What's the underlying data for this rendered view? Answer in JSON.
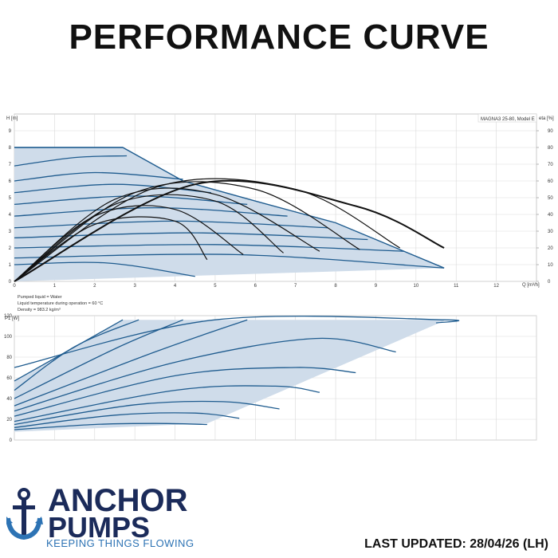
{
  "page": {
    "title": "PERFORMANCE CURVE",
    "last_updated": "LAST UPDATED: 28/04/26 (LH)"
  },
  "logo": {
    "line1": "ANCHOR",
    "line2": "PUMPS",
    "tagline": "KEEPING THINGS FLOWING"
  },
  "colors": {
    "curve_blue": "#1f5c8f",
    "shade": "#cfdcea",
    "eff_black": "#111111",
    "grid": "#d9d9d9",
    "logo_navy": "#1b2b5a",
    "logo_blue": "#2d73b4"
  },
  "chart_data": [
    {
      "type": "line",
      "legend_box": "MAGNA3 25-80, Model E",
      "ylabel": "H\n[m]",
      "y2label": "eta\n[%]",
      "xlabel": "Q [m³/h]",
      "xlim": [
        0,
        13
      ],
      "ylim": [
        0,
        10
      ],
      "y2lim": [
        0,
        100
      ],
      "x_ticks": [
        "0",
        "1",
        "2",
        "3",
        "4",
        "5",
        "6",
        "7",
        "8",
        "9",
        "10",
        "11",
        "12"
      ],
      "y_ticks": [
        "0",
        "1",
        "2",
        "3",
        "4",
        "5",
        "6",
        "7",
        "8",
        "9"
      ],
      "y2_ticks": [
        "0",
        "10",
        "20",
        "30",
        "40",
        "50",
        "60",
        "70",
        "80",
        "90"
      ],
      "grid": true,
      "notes": [
        "Pumped liquid = Water",
        "Liquid temperature during operation = 60 °C",
        "Density = 983.2 kg/m³"
      ],
      "envelope": {
        "x": [
          0,
          2.7,
          4.2,
          6.0,
          8.0,
          10.7,
          10.7,
          0
        ],
        "y": [
          8.0,
          8.0,
          6.0,
          4.8,
          3.5,
          0.8,
          0.8,
          0
        ]
      },
      "head_curves": [
        {
          "x": [
            0,
            2.7
          ],
          "y": [
            8.0,
            8.0
          ]
        },
        {
          "x": [
            0,
            1.5,
            2.8
          ],
          "y": [
            6.9,
            7.4,
            7.5
          ]
        },
        {
          "x": [
            0,
            2,
            4.2
          ],
          "y": [
            6.0,
            6.5,
            6.1
          ]
        },
        {
          "x": [
            0,
            2.5,
            4.9
          ],
          "y": [
            5.3,
            5.8,
            5.3
          ]
        },
        {
          "x": [
            0,
            3,
            5.8
          ],
          "y": [
            4.6,
            5.1,
            4.6
          ]
        },
        {
          "x": [
            0,
            3.5,
            6.8
          ],
          "y": [
            3.9,
            4.4,
            3.9
          ]
        },
        {
          "x": [
            0,
            4,
            7.8
          ],
          "y": [
            3.2,
            3.6,
            3.2
          ]
        },
        {
          "x": [
            0,
            4.5,
            8.8
          ],
          "y": [
            2.6,
            2.9,
            2.5
          ]
        },
        {
          "x": [
            0,
            5,
            9.7
          ],
          "y": [
            2.0,
            2.2,
            1.8
          ]
        },
        {
          "x": [
            0,
            5.5,
            10.7
          ],
          "y": [
            1.4,
            1.6,
            0.8
          ]
        },
        {
          "x": [
            0,
            2.3,
            4.5
          ],
          "y": [
            1.0,
            1.1,
            0.3
          ]
        }
      ],
      "eff_curves": [
        {
          "x": [
            0,
            2,
            4,
            4.8
          ],
          "y": [
            0,
            3.4,
            3.6,
            1.3
          ]
        },
        {
          "x": [
            0,
            2,
            4,
            5.7
          ],
          "y": [
            0,
            3.9,
            4.3,
            1.6
          ]
        },
        {
          "x": [
            0,
            2.5,
            5,
            6.7
          ],
          "y": [
            0,
            4.6,
            4.8,
            1.7
          ]
        },
        {
          "x": [
            0,
            2.5,
            5,
            7.6
          ],
          "y": [
            0,
            4.9,
            5.2,
            1.8
          ]
        },
        {
          "x": [
            0,
            3,
            6,
            8.6
          ],
          "y": [
            0,
            5.3,
            5.5,
            1.9
          ]
        },
        {
          "x": [
            0,
            3.5,
            7,
            9.6
          ],
          "y": [
            0,
            5.6,
            5.5,
            2.0
          ]
        },
        {
          "x": [
            0,
            4.5,
            8.5,
            10.7
          ],
          "y": [
            0,
            5.8,
            4.5,
            2.0
          ]
        }
      ]
    },
    {
      "type": "line",
      "ylabel": "P1\n[W]",
      "ylim": [
        0,
        120
      ],
      "xlim": [
        0,
        13
      ],
      "y_ticks": [
        "0",
        "20",
        "40",
        "60",
        "80",
        "100",
        "120"
      ],
      "grid": true,
      "envelope": {
        "x": [
          0,
          2.7,
          10.7,
          10.7,
          4.8,
          0
        ],
        "y": [
          57,
          116,
          116,
          115,
          16,
          8
        ]
      },
      "power_curves": [
        {
          "x": [
            0,
            2.7
          ],
          "y": [
            57,
            116
          ]
        },
        {
          "x": [
            0,
            1.5,
            3.1
          ],
          "y": [
            48,
            90,
            116
          ]
        },
        {
          "x": [
            0,
            2.5,
            4.2
          ],
          "y": [
            40,
            88,
            116
          ]
        },
        {
          "x": [
            0,
            3.5,
            5.8
          ],
          "y": [
            33,
            85,
            116
          ]
        },
        {
          "x": [
            0,
            4,
            7.5,
            9.5
          ],
          "y": [
            28,
            75,
            98,
            85
          ]
        },
        {
          "x": [
            0,
            4,
            7,
            8.5
          ],
          "y": [
            23,
            62,
            70,
            65
          ]
        },
        {
          "x": [
            0,
            4,
            6.5,
            7.6
          ],
          "y": [
            18,
            48,
            52,
            46
          ]
        },
        {
          "x": [
            0,
            3,
            5.2,
            6.6
          ],
          "y": [
            15,
            34,
            37,
            30
          ]
        },
        {
          "x": [
            0,
            2.5,
            4.5,
            5.6
          ],
          "y": [
            12,
            24,
            26,
            21
          ]
        },
        {
          "x": [
            0,
            2,
            3.5,
            4.8
          ],
          "y": [
            10,
            15,
            16,
            15
          ]
        },
        {
          "x": [
            0,
            5,
            10.7,
            10.5
          ],
          "y": [
            70,
            116,
            116,
            113
          ]
        }
      ]
    }
  ]
}
